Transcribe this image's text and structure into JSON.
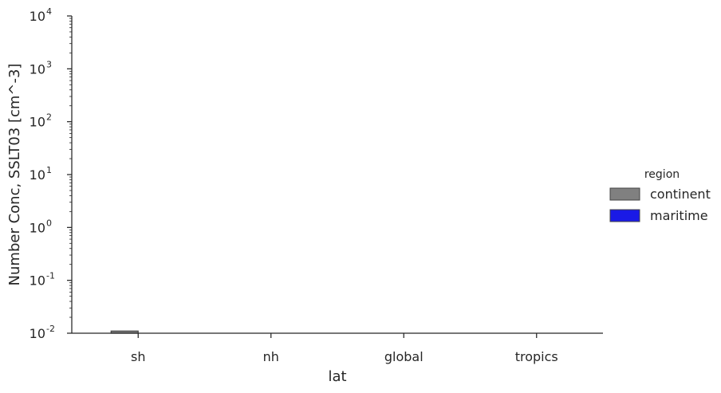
{
  "chart_data": {
    "type": "bar",
    "title": "",
    "xlabel": "lat",
    "ylabel": "Number Conc, SSLT03 [cm^-3]",
    "yscale": "log",
    "ylim": [
      0.01,
      10000
    ],
    "ytick_base": "10",
    "ytick_exponents": [
      "-2",
      "-1",
      "0",
      "1",
      "2",
      "3",
      "4"
    ],
    "categories": [
      "sh",
      "nh",
      "global",
      "tropics"
    ],
    "legend": {
      "title": "region",
      "position": "right"
    },
    "grid": false,
    "series": [
      {
        "name": "continent",
        "color": "#808080",
        "edge_color": "#444444",
        "values": [
          0.011,
          0.01,
          0.01,
          0.01
        ]
      },
      {
        "name": "maritime",
        "color": "#1a1ae6",
        "edge_color": "#444444",
        "values": [
          null,
          null,
          null,
          null
        ]
      }
    ]
  }
}
